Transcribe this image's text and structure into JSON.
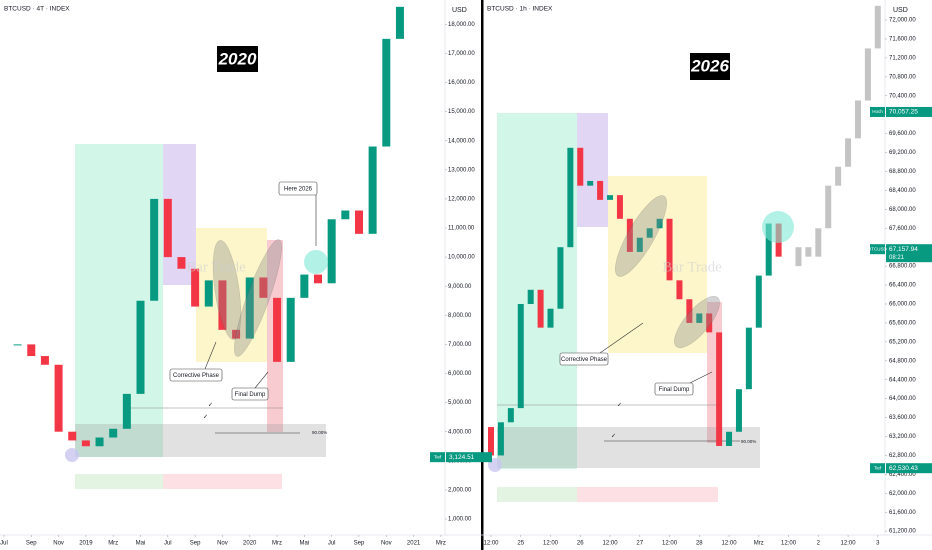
{
  "chart_data": [
    {
      "type": "candlestick",
      "title": "BTCUSD · 4T · INDEX",
      "unit": "USD",
      "x": [
        0,
        1,
        2,
        3,
        4,
        5,
        6,
        7,
        8,
        9,
        10,
        11,
        12,
        13,
        14,
        15,
        16,
        17,
        18,
        19,
        20,
        21,
        22,
        23,
        24,
        25,
        26,
        27,
        28,
        29
      ],
      "values": [
        7000,
        7000,
        6600,
        6300,
        4000,
        3700,
        3500,
        3800,
        4100,
        5300,
        8500,
        12000,
        10000,
        9600,
        8300,
        9200,
        7500,
        7200,
        9300,
        8600,
        6400,
        8600,
        9400,
        9100,
        11300,
        11600,
        10800,
        13800,
        17500,
        18600
      ],
      "up_color": "#089981",
      "down_color": "#f23645",
      "xlim": [
        -0.29,
        32.3
      ],
      "ylim": [
        450,
        18835
      ],
      "grid": false,
      "xticks": [
        {
          "value": 0,
          "label": "Jul"
        },
        {
          "value": 2,
          "label": "Sep"
        },
        {
          "value": 4,
          "label": "Nov"
        },
        {
          "value": 6,
          "label": "2019"
        },
        {
          "value": 8,
          "label": "Mrz"
        },
        {
          "value": 10,
          "label": "Mai"
        },
        {
          "value": 12,
          "label": "Jul"
        },
        {
          "value": 14,
          "label": "Sep"
        },
        {
          "value": 16,
          "label": "Nov"
        },
        {
          "value": 18,
          "label": "2020"
        },
        {
          "value": 20,
          "label": "Mrz"
        },
        {
          "value": 22,
          "label": "Mai"
        },
        {
          "value": 24,
          "label": "Jul"
        },
        {
          "value": 26,
          "label": "Sep"
        },
        {
          "value": 28,
          "label": "Nov"
        },
        {
          "value": 30,
          "label": "2021"
        },
        {
          "value": 32,
          "label": "Mrz"
        }
      ],
      "yticks": [
        {
          "value": 1000,
          "label": "1,000.00"
        },
        {
          "value": 2000,
          "label": "2,000.00"
        },
        {
          "value": 3000,
          "label": "3,000.00"
        },
        {
          "value": 4000,
          "label": "4,000.00"
        },
        {
          "value": 5000,
          "label": "5,000.00"
        },
        {
          "value": 6000,
          "label": "6,000.00"
        },
        {
          "value": 7000,
          "label": "7,000.00"
        },
        {
          "value": 8000,
          "label": "8,000.00"
        },
        {
          "value": 9000,
          "label": "9,000.00"
        },
        {
          "value": 10000,
          "label": "10,000.00"
        },
        {
          "value": 11000,
          "label": "11,000.00"
        },
        {
          "value": 12000,
          "label": "12,000.00"
        },
        {
          "value": 13000,
          "label": "13,000.00"
        },
        {
          "value": 14000,
          "label": "14,000.00"
        },
        {
          "value": 15000,
          "label": "15,000.00"
        },
        {
          "value": 16000,
          "label": "16,000.00"
        },
        {
          "value": 17000,
          "label": "17,000.00"
        },
        {
          "value": 18000,
          "label": "18,000.00"
        }
      ],
      "price_labels": [
        {
          "text": "Tief",
          "value": 3124.51,
          "label": "3,124.51"
        }
      ],
      "annotations": {
        "year": "2020",
        "callout": "Here 2026",
        "corrective": "Corrective Phase",
        "dump": "Final Dump",
        "watermark": "Bar Trade",
        "checks": [
          "✓",
          "✓"
        ],
        "percent": "90.00%"
      }
    },
    {
      "type": "candlestick",
      "title": "BTCUSD · 1h · INDEX",
      "unit": "USD",
      "x": [
        -4,
        0,
        4,
        8,
        12,
        16,
        20,
        24,
        28,
        32,
        36,
        40,
        44,
        48,
        52,
        56,
        60,
        64,
        68,
        72,
        76,
        80,
        84,
        88,
        92,
        96,
        100,
        104,
        108,
        112,
        116
      ],
      "values": [
        63400,
        62800,
        63500,
        63800,
        66000,
        66300,
        65500,
        65900,
        67200,
        69300,
        68500,
        68600,
        68200,
        68300,
        67800,
        67100,
        67400,
        67600,
        67800,
        66500,
        66100,
        65600,
        65800,
        65400,
        63000,
        63300,
        64200,
        65500,
        66600,
        67700,
        67000
      ],
      "projection": {
        "x": [
          120,
          124,
          128,
          132,
          136,
          140,
          144,
          148,
          152,
          156
        ],
        "values": [
          66800,
          67200,
          67000,
          67600,
          68500,
          68900,
          69500,
          70300,
          71400,
          72300
        ],
        "color": "#c4c4c4"
      },
      "up_color": "#089981",
      "down_color": "#f23645",
      "xlim": [
        -3.23,
        158.9
      ],
      "ylim": [
        61119,
        72423
      ],
      "grid": false,
      "xticks": [
        {
          "value": 0,
          "label": "12:00"
        },
        {
          "value": 12,
          "label": "25"
        },
        {
          "value": 24,
          "label": "12:00"
        },
        {
          "value": 36,
          "label": "26"
        },
        {
          "value": 48,
          "label": "12:00"
        },
        {
          "value": 60,
          "label": "27"
        },
        {
          "value": 72,
          "label": "12:00"
        },
        {
          "value": 84,
          "label": "28"
        },
        {
          "value": 96,
          "label": "12:00"
        },
        {
          "value": 108,
          "label": "Mrz"
        },
        {
          "value": 120,
          "label": "12:00"
        },
        {
          "value": 132,
          "label": "2"
        },
        {
          "value": 144,
          "label": "12:00"
        },
        {
          "value": 156,
          "label": "3"
        }
      ],
      "yticks": [
        {
          "value": 61200,
          "label": "61,200.00"
        },
        {
          "value": 61600,
          "label": "61,600.00"
        },
        {
          "value": 62000,
          "label": "62,000.00"
        },
        {
          "value": 62400,
          "label": "62,400.00"
        },
        {
          "value": 62800,
          "label": "62,800.00"
        },
        {
          "value": 63200,
          "label": "63,200.00"
        },
        {
          "value": 63600,
          "label": "63,600.00"
        },
        {
          "value": 64000,
          "label": "64,000.00"
        },
        {
          "value": 64400,
          "label": "64,400.00"
        },
        {
          "value": 64800,
          "label": "64,800.00"
        },
        {
          "value": 65200,
          "label": "65,200.00"
        },
        {
          "value": 65600,
          "label": "65,600.00"
        },
        {
          "value": 66000,
          "label": "66,000.00"
        },
        {
          "value": 66400,
          "label": "66,400.00"
        },
        {
          "value": 66800,
          "label": "66,800.00"
        },
        {
          "value": 67200,
          "label": "67,200.00"
        },
        {
          "value": 67600,
          "label": "67,600.00"
        },
        {
          "value": 68000,
          "label": "68,000.00"
        },
        {
          "value": 68400,
          "label": "68,400.00"
        },
        {
          "value": 68800,
          "label": "68,800.00"
        },
        {
          "value": 69200,
          "label": "69,200.00"
        },
        {
          "value": 69600,
          "label": "69,600.00"
        },
        {
          "value": 70000,
          "label": "70,000.00"
        },
        {
          "value": 70400,
          "label": "70,400.00"
        },
        {
          "value": 70800,
          "label": "70,800.00"
        },
        {
          "value": 71200,
          "label": "71,200.00"
        },
        {
          "value": 71600,
          "label": "71,600.00"
        },
        {
          "value": 72000,
          "label": "72,000.00"
        }
      ],
      "price_labels": [
        {
          "text": "Hoch",
          "value": 70057.25,
          "label": "70,057.25"
        },
        {
          "text": "BTCUSD",
          "value": 67157.94,
          "label": "67,157.94",
          "time": "08:21"
        },
        {
          "text": "Tief",
          "value": 62530.43,
          "label": "62,530.43"
        }
      ],
      "annotations": {
        "year": "2026",
        "corrective": "Corrective Phase",
        "dump": "Final Dump",
        "watermark": "Bar Trade",
        "checks": [
          "✓",
          "✓"
        ],
        "percent": "90.00%"
      }
    }
  ]
}
